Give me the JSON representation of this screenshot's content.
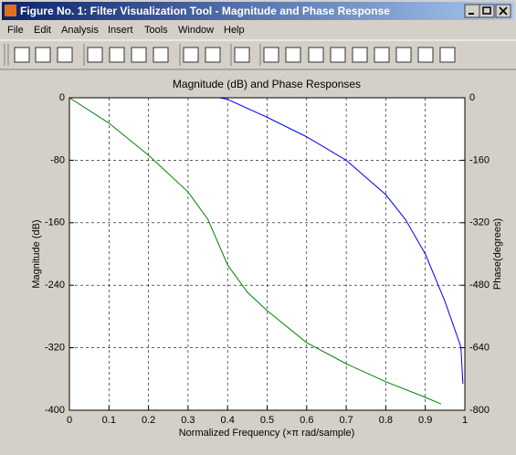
{
  "window": {
    "title": "Figure No. 1: Filter Visualization Tool - Magnitude and Phase Response",
    "menu": [
      "File",
      "Edit",
      "Analysis",
      "Insert",
      "Tools",
      "Window",
      "Help"
    ]
  },
  "chart_data": {
    "type": "line",
    "title": "Magnitude (dB) and Phase Responses",
    "x_label": "Normalized Frequency  (×π rad/sample)",
    "y_label": "Magnitude (dB)",
    "y2_label": "Phase(degrees)",
    "series": [
      {
        "color": "#0000ff",
        "x": [
          0.38,
          0.4,
          0.5,
          0.6,
          0.7,
          0.8,
          0.85,
          0.9,
          0.95,
          0.97,
          0.99,
          0.995
        ],
        "values": [
          0,
          -2,
          -25,
          -50,
          -80,
          -124,
          -156,
          -200,
          -261,
          -290,
          -319,
          -366
        ]
      },
      {
        "color": "#008000",
        "axis": "y2",
        "x": [
          0,
          0.1,
          0.2,
          0.3,
          0.35,
          0.4,
          0.45,
          0.5,
          0.6,
          0.7,
          0.8,
          0.9,
          0.94
        ],
        "values": [
          0,
          -65,
          -147,
          -241,
          -311,
          -428,
          -498,
          -545,
          -627,
          -681,
          -727,
          -767,
          -784
        ]
      }
    ],
    "xlim": [
      0,
      1
    ],
    "xticks": [
      0,
      0.1,
      0.2,
      0.3,
      0.4,
      0.5,
      0.6,
      0.7,
      0.8,
      0.9,
      1
    ],
    "ylim": [
      -400,
      0
    ],
    "yticks": [
      0,
      -80,
      -160,
      -240,
      -320,
      -400
    ],
    "y2lim": [
      -800,
      0
    ],
    "y2ticks": [
      0,
      -160,
      -320,
      -480,
      -640,
      -800
    ],
    "grid": true
  }
}
